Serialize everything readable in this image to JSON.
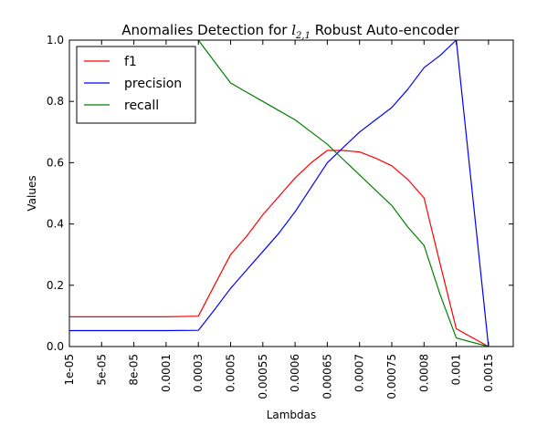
{
  "chart_data": {
    "type": "line",
    "title": "Anomalies Detection for l2,1 Robust Auto-encoder",
    "title_parts": {
      "prefix": "Anomalies Detection for ",
      "math_base": "l",
      "math_sub": "2,1",
      "suffix": " Robust Auto-encoder"
    },
    "xlabel": "Lambdas",
    "ylabel": "Values",
    "ylim": [
      0.0,
      1.0
    ],
    "yticks": [
      "0.0",
      "0.2",
      "0.4",
      "0.6",
      "0.8",
      "1.0"
    ],
    "categories": [
      "1e-05",
      "5e-05",
      "8e-05",
      "0.0001",
      "0.0003",
      "0.0005",
      "0.00055",
      "0.0006",
      "0.00065",
      "0.0007",
      "0.00075",
      "0.0008",
      "0.001",
      "0.0015"
    ],
    "legend_position": "top-left",
    "grid": false,
    "series": [
      {
        "name": "f1",
        "color": "#ff0000",
        "points": [
          [
            0,
            0.097
          ],
          [
            1,
            0.097
          ],
          [
            2,
            0.097
          ],
          [
            3,
            0.097
          ],
          [
            4,
            0.099
          ],
          [
            4.5,
            0.2
          ],
          [
            5,
            0.3
          ],
          [
            5.5,
            0.36
          ],
          [
            6,
            0.43
          ],
          [
            6.5,
            0.49
          ],
          [
            7,
            0.55
          ],
          [
            7.5,
            0.6
          ],
          [
            8,
            0.64
          ],
          [
            8.5,
            0.64
          ],
          [
            9,
            0.635
          ],
          [
            9.5,
            0.615
          ],
          [
            10,
            0.59
          ],
          [
            10.5,
            0.545
          ],
          [
            11,
            0.485
          ],
          [
            11.5,
            0.27
          ],
          [
            12,
            0.058
          ],
          [
            13,
            0.0
          ]
        ]
      },
      {
        "name": "precision",
        "color": "#0000ff",
        "points": [
          [
            0,
            0.052
          ],
          [
            1,
            0.052
          ],
          [
            2,
            0.052
          ],
          [
            3,
            0.052
          ],
          [
            4,
            0.053
          ],
          [
            4.5,
            0.12
          ],
          [
            5,
            0.19
          ],
          [
            5.5,
            0.25
          ],
          [
            6,
            0.31
          ],
          [
            6.5,
            0.37
          ],
          [
            7,
            0.44
          ],
          [
            7.5,
            0.52
          ],
          [
            8,
            0.6
          ],
          [
            8.5,
            0.65
          ],
          [
            9,
            0.7
          ],
          [
            9.5,
            0.74
          ],
          [
            10,
            0.78
          ],
          [
            10.5,
            0.84
          ],
          [
            11,
            0.91
          ],
          [
            11.5,
            0.95
          ],
          [
            12,
            1.0
          ],
          [
            13,
            0.0
          ]
        ]
      },
      {
        "name": "recall",
        "color": "#008000",
        "points": [
          [
            4,
            1.0
          ],
          [
            4.5,
            0.93
          ],
          [
            5,
            0.86
          ],
          [
            5.5,
            0.83
          ],
          [
            6,
            0.8
          ],
          [
            6.5,
            0.77
          ],
          [
            7,
            0.74
          ],
          [
            7.5,
            0.7
          ],
          [
            8,
            0.66
          ],
          [
            8.5,
            0.61
          ],
          [
            9,
            0.56
          ],
          [
            9.5,
            0.51
          ],
          [
            10,
            0.46
          ],
          [
            10.5,
            0.39
          ],
          [
            11,
            0.33
          ],
          [
            11.5,
            0.17
          ],
          [
            12,
            0.028
          ],
          [
            13,
            0.0
          ]
        ]
      }
    ]
  }
}
